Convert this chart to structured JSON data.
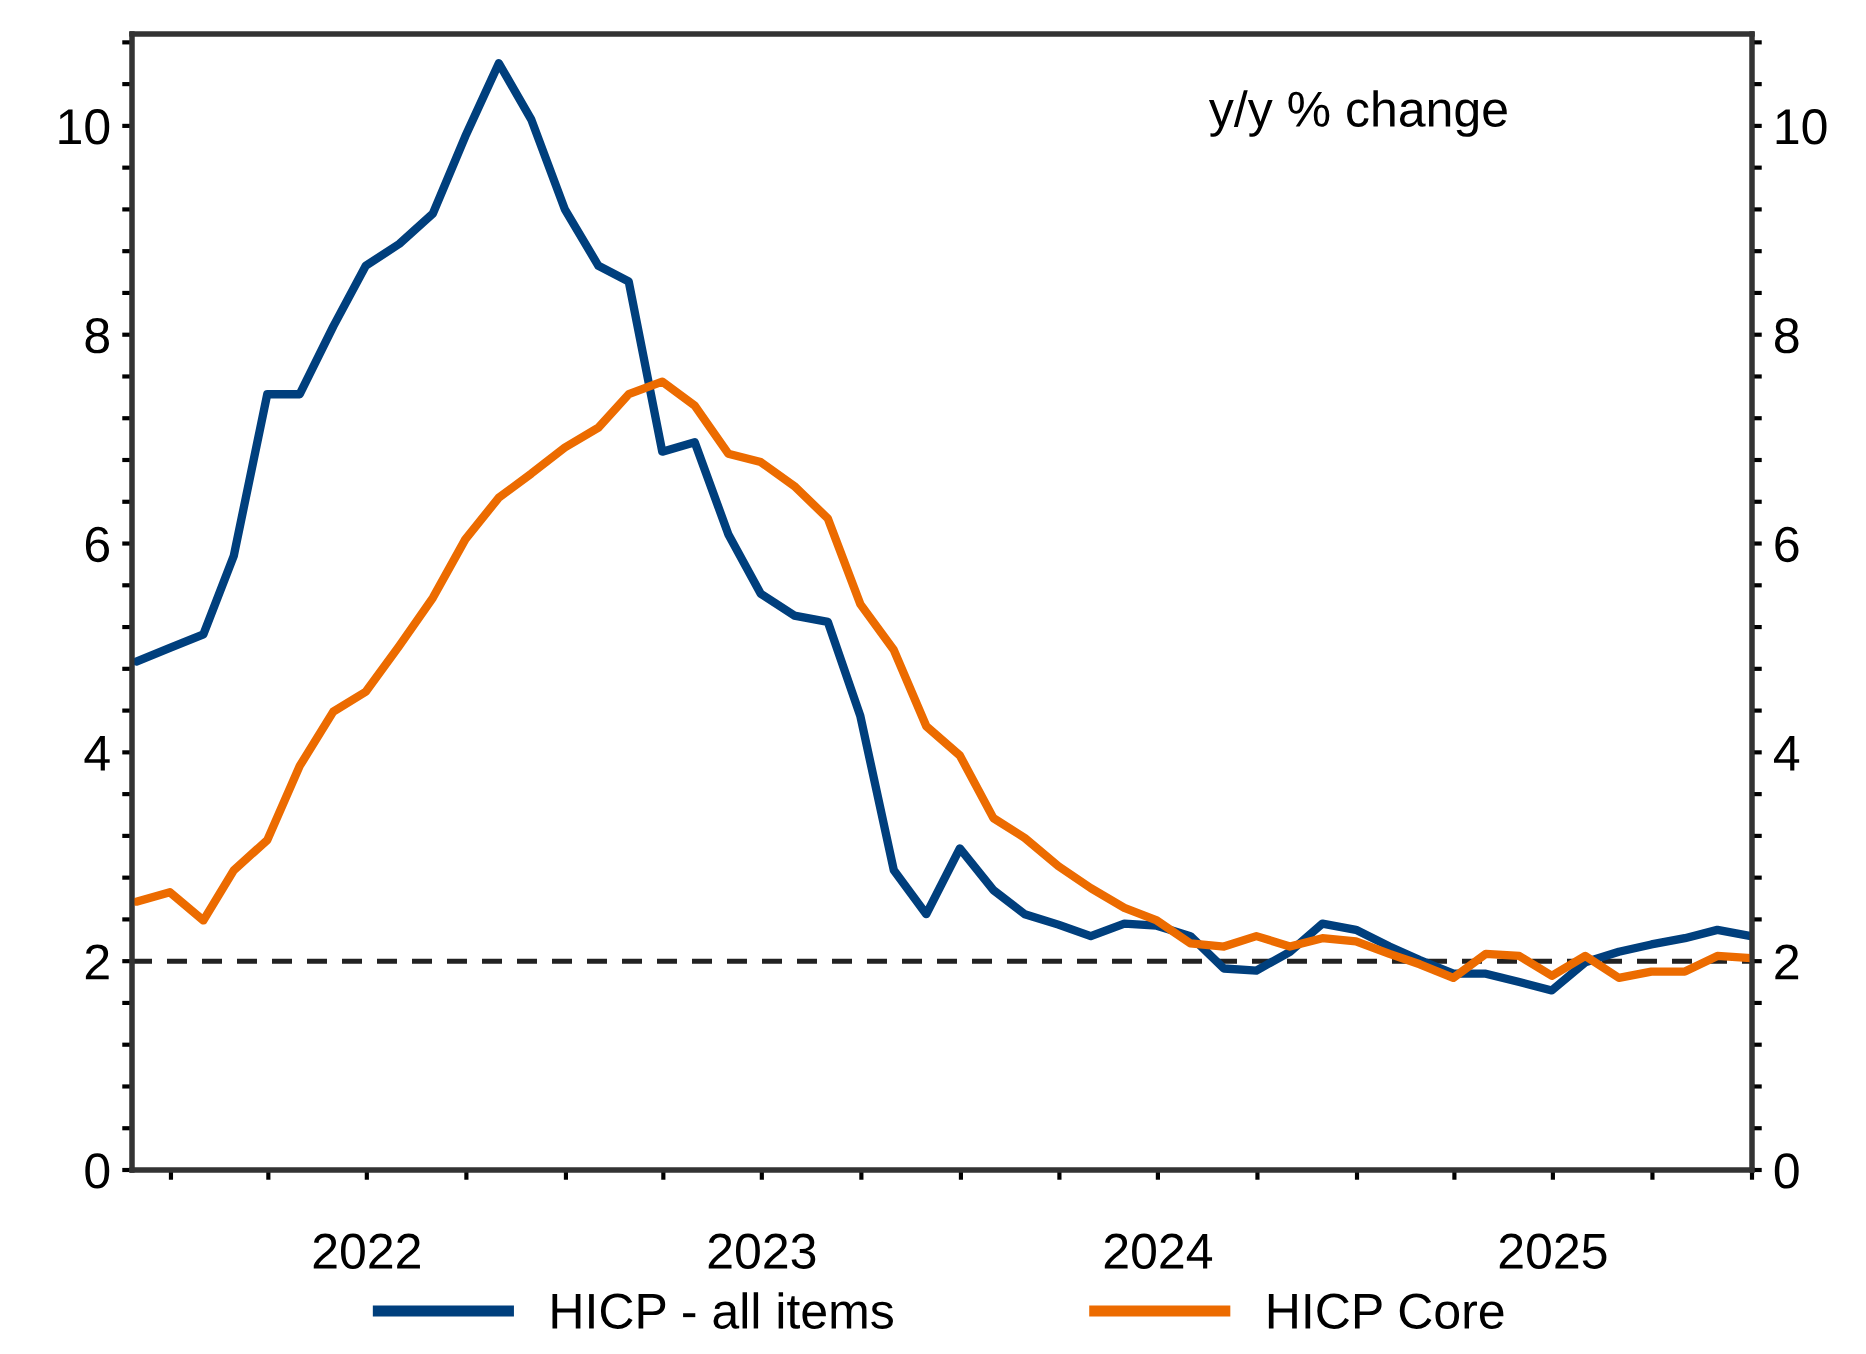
{
  "chart_data": {
    "type": "line",
    "x": [
      "2021-11-30",
      "2021-12-31",
      "2022-01-31",
      "2022-02-28",
      "2022-03-31",
      "2022-04-30",
      "2022-05-31",
      "2022-06-30",
      "2022-07-31",
      "2022-08-31",
      "2022-09-30",
      "2022-10-31",
      "2022-11-30",
      "2022-12-31",
      "2023-01-31",
      "2023-02-28",
      "2023-03-31",
      "2023-04-30",
      "2023-05-31",
      "2023-06-30",
      "2023-07-31",
      "2023-08-31",
      "2023-09-30",
      "2023-10-31",
      "2023-11-30",
      "2023-12-31",
      "2024-01-31",
      "2024-02-29",
      "2024-03-31",
      "2024-04-30",
      "2024-05-31",
      "2024-06-30",
      "2024-07-31",
      "2024-08-31",
      "2024-09-30",
      "2024-10-31",
      "2024-11-30",
      "2024-12-31",
      "2025-01-31",
      "2025-02-28",
      "2025-03-31",
      "2025-04-30",
      "2025-05-31",
      "2025-06-30",
      "2025-07-31",
      "2025-08-31",
      "2025-09-30",
      "2025-10-31",
      "2025-11-30",
      "2025-12-31"
    ],
    "series": [
      {
        "name": "HICP - all items",
        "color": "#003f7d",
        "values": [
          4.87,
          5.0,
          5.13,
          5.88,
          7.43,
          7.43,
          8.08,
          8.66,
          8.87,
          9.16,
          9.9,
          10.6,
          10.06,
          9.2,
          8.66,
          8.51,
          6.88,
          6.97,
          6.09,
          5.52,
          5.31,
          5.25,
          4.35,
          2.87,
          2.45,
          3.08,
          2.68,
          2.45,
          2.35,
          2.24,
          2.36,
          2.34,
          2.24,
          1.93,
          1.91,
          2.09,
          2.36,
          2.3,
          2.14,
          2.01,
          1.88,
          1.88,
          1.8,
          1.72,
          1.99,
          2.09,
          2.16,
          2.22,
          2.3,
          2.24
        ]
      },
      {
        "name": "HICP Core",
        "color": "#ec6b00",
        "values": [
          2.57,
          2.66,
          2.39,
          2.87,
          3.16,
          3.87,
          4.39,
          4.58,
          5.02,
          5.48,
          6.04,
          6.44,
          6.67,
          6.92,
          7.11,
          7.43,
          7.55,
          7.32,
          6.86,
          6.78,
          6.55,
          6.24,
          5.42,
          4.98,
          4.25,
          3.97,
          3.37,
          3.18,
          2.91,
          2.7,
          2.51,
          2.39,
          2.17,
          2.14,
          2.24,
          2.14,
          2.22,
          2.19,
          2.07,
          1.97,
          1.84,
          2.07,
          2.05,
          1.86,
          2.05,
          1.84,
          1.9,
          1.9,
          2.05,
          2.03
        ]
      }
    ],
    "xlim": [
      "2021-11-26",
      "2026-01-01"
    ],
    "xticks": [
      {
        "value": "2022-01-01",
        "label": null
      },
      {
        "value": "2022-04-01",
        "label": null
      },
      {
        "value": "2022-07-01",
        "label": "2022"
      },
      {
        "value": "2022-10-01",
        "label": null
      },
      {
        "value": "2023-01-01",
        "label": null
      },
      {
        "value": "2023-04-01",
        "label": null
      },
      {
        "value": "2023-07-01",
        "label": "2023"
      },
      {
        "value": "2023-10-01",
        "label": null
      },
      {
        "value": "2024-01-01",
        "label": null
      },
      {
        "value": "2024-04-01",
        "label": null
      },
      {
        "value": "2024-07-01",
        "label": "2024"
      },
      {
        "value": "2024-10-01",
        "label": null
      },
      {
        "value": "2025-01-01",
        "label": null
      },
      {
        "value": "2025-04-01",
        "label": null
      },
      {
        "value": "2025-07-01",
        "label": "2025"
      },
      {
        "value": "2025-10-01",
        "label": null
      },
      {
        "value": "2026-01-01",
        "label": null
      }
    ],
    "ylim": [
      0,
      10.88
    ],
    "yticks": [
      0,
      {
        "value": 0.4,
        "label": null
      },
      {
        "value": 0.8,
        "label": null
      },
      {
        "value": 1.2,
        "label": null
      },
      {
        "value": 1.6,
        "label": null
      },
      2,
      {
        "value": 2.4,
        "label": null
      },
      {
        "value": 2.8,
        "label": null
      },
      {
        "value": 3.2,
        "label": null
      },
      {
        "value": 3.6,
        "label": null
      },
      4,
      {
        "value": 4.4,
        "label": null
      },
      {
        "value": 4.8,
        "label": null
      },
      {
        "value": 5.2,
        "label": null
      },
      {
        "value": 5.6,
        "label": null
      },
      6,
      {
        "value": 6.4,
        "label": null
      },
      {
        "value": 6.8,
        "label": null
      },
      {
        "value": 7.2,
        "label": null
      },
      {
        "value": 7.6,
        "label": null
      },
      8,
      {
        "value": 8.4,
        "label": null
      },
      {
        "value": 8.8,
        "label": null
      },
      {
        "value": 9.2,
        "label": null
      },
      {
        "value": 9.6,
        "label": null
      },
      10,
      {
        "value": 10.4,
        "label": null
      },
      {
        "value": 10.8,
        "label": null
      }
    ],
    "y2lim": [
      0,
      10.88
    ],
    "y2ticks": [
      0,
      {
        "value": 0.4,
        "label": null
      },
      {
        "value": 0.8,
        "label": null
      },
      {
        "value": 1.2,
        "label": null
      },
      {
        "value": 1.6,
        "label": null
      },
      2,
      {
        "value": 2.4,
        "label": null
      },
      {
        "value": 2.8,
        "label": null
      },
      {
        "value": 3.2,
        "label": null
      },
      {
        "value": 3.6,
        "label": null
      },
      4,
      {
        "value": 4.4,
        "label": null
      },
      {
        "value": 4.8,
        "label": null
      },
      {
        "value": 5.2,
        "label": null
      },
      {
        "value": 5.6,
        "label": null
      },
      6,
      {
        "value": 6.4,
        "label": null
      },
      {
        "value": 6.8,
        "label": null
      },
      {
        "value": 7.2,
        "label": null
      },
      {
        "value": 7.6,
        "label": null
      },
      8,
      {
        "value": 8.4,
        "label": null
      },
      {
        "value": 8.8,
        "label": null
      },
      {
        "value": 9.2,
        "label": null
      },
      {
        "value": 9.6,
        "label": null
      },
      10,
      {
        "value": 10.4,
        "label": null
      },
      {
        "value": 10.8,
        "label": null
      }
    ],
    "ref_lines": [
      {
        "axis": "y",
        "value": 2,
        "color": "#222222",
        "line_style": "dashed"
      }
    ],
    "annotations": [
      "y/y % change"
    ],
    "legend": "bottom",
    "grid": false,
    "marker": "none",
    "line_style": "solid"
  }
}
